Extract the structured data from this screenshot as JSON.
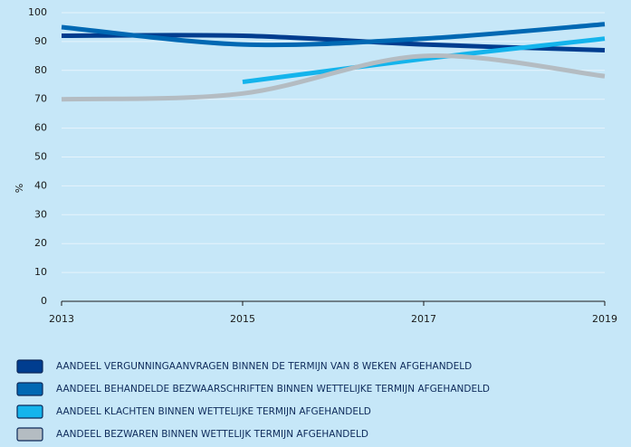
{
  "chart_data": {
    "type": "line",
    "x": [
      2013,
      2015,
      2017,
      2019
    ],
    "xlim": [
      2013,
      2019
    ],
    "xticks": [
      2013,
      2015,
      2017,
      2019
    ],
    "ylim": [
      0,
      100
    ],
    "yticks": [
      0,
      10,
      20,
      30,
      40,
      50,
      60,
      70,
      80,
      90,
      100
    ],
    "ylabel": "%",
    "grid": true,
    "series": [
      {
        "name": "AANDEEL VERGUNNINGAANVRAGEN BINNEN DE TERMIJN VAN 8 WEKEN AFGEHANDELD",
        "color": "#003d8f",
        "values": [
          92,
          92,
          89,
          87
        ]
      },
      {
        "name": "AANDEEL BEHANDELDE BEZWAARSCHRIFTEN BINNEN WETTELIJKE TERMIJN AFGEHANDELD",
        "color": "#0068b3",
        "values": [
          95,
          89,
          91,
          96
        ]
      },
      {
        "name": "AANDEEL KLACHTEN BINNEN WETTELIJKE TERMIJN AFGEHANDELD",
        "color": "#14b4ec",
        "values": [
          null,
          76,
          84,
          91
        ]
      },
      {
        "name": "AANDEEL BEZWAREN BINNEN WETTELIJK TERMIJN AFGEHANDELD",
        "color": "#b4bcc2",
        "values": [
          70,
          72,
          85,
          78
        ]
      }
    ]
  }
}
